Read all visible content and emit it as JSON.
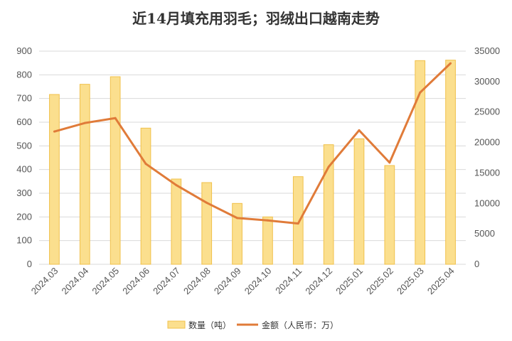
{
  "title": "近14月填充用羽毛；羽绒出口越南走势",
  "chart_data": {
    "type": "bar+line",
    "title": "近14月填充用羽毛；羽绒出口越南走势",
    "categories": [
      "2024.03",
      "2024.04",
      "2024.05",
      "2024.06",
      "2024.07",
      "2024.08",
      "2024.09",
      "2024.10",
      "2024.11",
      "2024.12",
      "2025.01",
      "2025.02",
      "2025.03",
      "2025.04"
    ],
    "series": [
      {
        "name": "数量（吨）",
        "type": "bar",
        "axis": "left",
        "color": "#f6cd5e",
        "values": [
          717,
          760,
          792,
          575,
          360,
          345,
          257,
          200,
          370,
          505,
          530,
          417,
          860,
          862
        ]
      },
      {
        "name": "金额（人民币：万）",
        "type": "line",
        "axis": "right",
        "color": "#e07b39",
        "values": [
          21800,
          23200,
          24000,
          16500,
          13000,
          10100,
          7600,
          7200,
          6700,
          16000,
          22000,
          16700,
          28200,
          33000
        ]
      }
    ],
    "y_left": {
      "min": 0,
      "max": 900,
      "ticks": [
        0,
        100,
        200,
        300,
        400,
        500,
        600,
        700,
        800,
        900
      ]
    },
    "y_right": {
      "min": 0,
      "max": 35000,
      "ticks": [
        0,
        5000,
        10000,
        15000,
        20000,
        25000,
        30000,
        35000
      ]
    },
    "grid": true,
    "legend_position": "bottom"
  }
}
